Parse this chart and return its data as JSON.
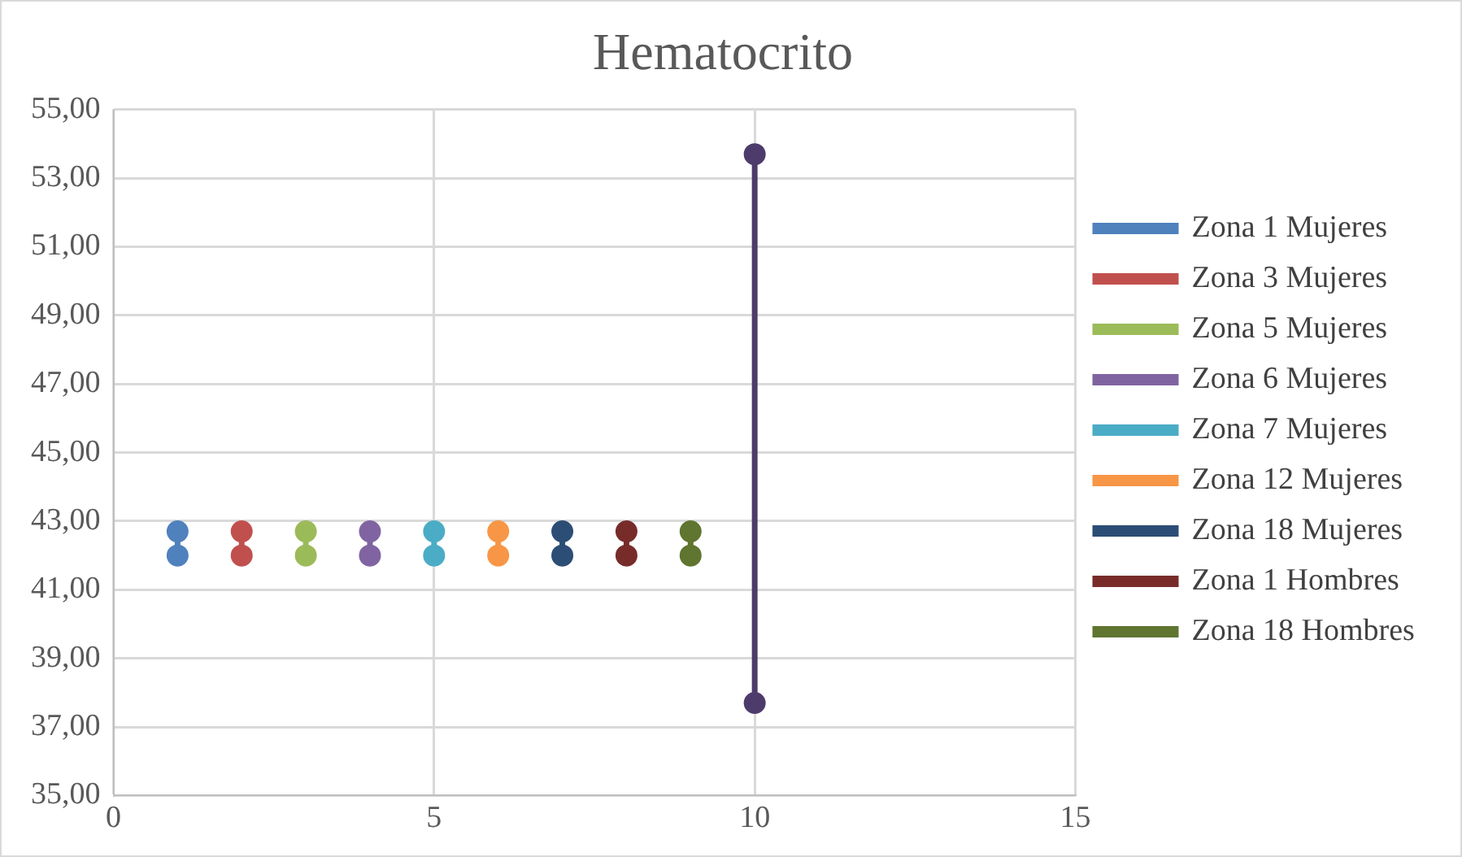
{
  "chart_data": {
    "type": "line",
    "title": "Hematocrito",
    "marker": "circle",
    "line_style": "solid",
    "grid": true,
    "legend": "right",
    "xlim": [
      0,
      15
    ],
    "xticks": [
      0,
      5,
      10,
      15
    ],
    "ylim": [
      35,
      55
    ],
    "yticks": [
      {
        "value": 35,
        "label": "35,00"
      },
      {
        "value": 37,
        "label": "37,00"
      },
      {
        "value": 39,
        "label": "39,00"
      },
      {
        "value": 41,
        "label": "41,00"
      },
      {
        "value": 43,
        "label": "43,00"
      },
      {
        "value": 45,
        "label": "45,00"
      },
      {
        "value": 47,
        "label": "47,00"
      },
      {
        "value": 49,
        "label": "49,00"
      },
      {
        "value": 51,
        "label": "51,00"
      },
      {
        "value": 53,
        "label": "53,00"
      },
      {
        "value": 55,
        "label": "55,00"
      }
    ],
    "series": [
      {
        "name": "Zona 1 Mujeres",
        "color": "#4f81bd",
        "x": [
          1,
          1
        ],
        "values": [
          42.0,
          42.7
        ]
      },
      {
        "name": "Zona 3 Mujeres",
        "color": "#c0504d",
        "x": [
          2,
          2
        ],
        "values": [
          42.0,
          42.7
        ]
      },
      {
        "name": "Zona 5 Mujeres",
        "color": "#9bbb59",
        "x": [
          3,
          3
        ],
        "values": [
          42.0,
          42.7
        ]
      },
      {
        "name": "Zona 6 Mujeres",
        "color": "#8064a2",
        "x": [
          4,
          4
        ],
        "values": [
          42.0,
          42.7
        ]
      },
      {
        "name": "Zona 7 Mujeres",
        "color": "#4bacc6",
        "x": [
          5,
          5
        ],
        "values": [
          42.0,
          42.7
        ]
      },
      {
        "name": "Zona 12 Mujeres",
        "color": "#f79646",
        "x": [
          6,
          6
        ],
        "values": [
          42.0,
          42.7
        ]
      },
      {
        "name": "Zona 18 Mujeres",
        "color": "#2c4d75",
        "x": [
          7,
          7
        ],
        "values": [
          42.0,
          42.7
        ]
      },
      {
        "name": "Zona 1 Hombres",
        "color": "#772c2a",
        "x": [
          8,
          8
        ],
        "values": [
          42.0,
          42.7
        ]
      },
      {
        "name": "Zona 18 Hombres",
        "color": "#5f7530",
        "x": [
          9,
          9
        ],
        "values": [
          42.0,
          42.7
        ]
      },
      {
        "color": "#4d3b6b",
        "x": [
          10,
          10
        ],
        "values": [
          37.7,
          53.7
        ]
      }
    ]
  }
}
